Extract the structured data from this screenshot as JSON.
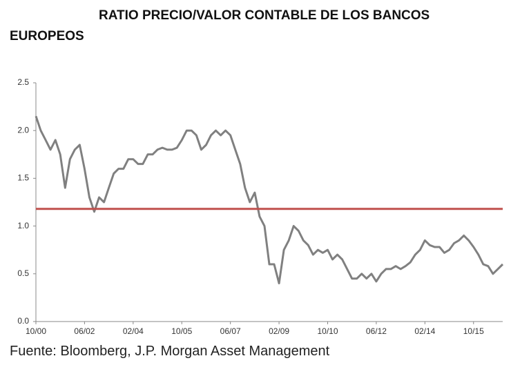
{
  "chart_data": {
    "type": "line",
    "title": "RATIO PRECIO/VALOR CONTABLE DE LOS BANCOS EUROPEOS",
    "source": "Fuente: Bloomberg, J.P. Morgan Asset Management",
    "x": [
      "10/00",
      "12/00",
      "02/01",
      "04/01",
      "06/01",
      "08/01",
      "10/01",
      "12/01",
      "02/02",
      "04/02",
      "06/02",
      "08/02",
      "10/02",
      "12/02",
      "02/03",
      "04/03",
      "06/03",
      "08/03",
      "10/03",
      "12/03",
      "02/04",
      "04/04",
      "06/04",
      "08/04",
      "10/04",
      "12/04",
      "02/05",
      "04/05",
      "06/05",
      "08/05",
      "10/05",
      "12/05",
      "02/06",
      "04/06",
      "06/06",
      "08/06",
      "10/06",
      "12/06",
      "02/07",
      "04/07",
      "06/07",
      "08/07",
      "10/07",
      "12/07",
      "02/08",
      "04/08",
      "06/08",
      "08/08",
      "10/08",
      "12/08",
      "02/09",
      "04/09",
      "06/09",
      "08/09",
      "10/09",
      "12/09",
      "02/10",
      "04/10",
      "06/10",
      "08/10",
      "10/10",
      "12/10",
      "02/11",
      "04/11",
      "06/11",
      "08/11",
      "10/11",
      "12/11",
      "02/12",
      "04/12",
      "06/12",
      "08/12",
      "10/12",
      "12/12",
      "02/13",
      "04/13",
      "06/13",
      "08/13",
      "10/13",
      "12/13",
      "02/14",
      "04/14",
      "06/14",
      "08/14",
      "10/14",
      "12/14",
      "02/15",
      "04/15",
      "06/15",
      "08/15",
      "10/15",
      "12/15",
      "02/16",
      "04/16",
      "06/16",
      "08/16",
      "10/16"
    ],
    "xticks": [
      "10/00",
      "06/02",
      "02/04",
      "10/05",
      "06/07",
      "02/09",
      "10/10",
      "06/12",
      "02/14",
      "10/15"
    ],
    "series": [
      {
        "color": "#808080",
        "values": [
          2.15,
          2.0,
          1.9,
          1.8,
          1.9,
          1.75,
          1.4,
          1.7,
          1.8,
          1.85,
          1.6,
          1.3,
          1.15,
          1.3,
          1.25,
          1.4,
          1.55,
          1.6,
          1.6,
          1.7,
          1.7,
          1.65,
          1.65,
          1.75,
          1.75,
          1.8,
          1.82,
          1.8,
          1.8,
          1.82,
          1.9,
          2.0,
          2.0,
          1.95,
          1.8,
          1.85,
          1.95,
          2.0,
          1.95,
          2.0,
          1.95,
          1.8,
          1.65,
          1.4,
          1.25,
          1.35,
          1.1,
          1.0,
          0.6,
          0.6,
          0.4,
          0.75,
          0.85,
          1.0,
          0.95,
          0.85,
          0.8,
          0.7,
          0.75,
          0.72,
          0.75,
          0.65,
          0.7,
          0.65,
          0.55,
          0.45,
          0.45,
          0.5,
          0.45,
          0.5,
          0.42,
          0.5,
          0.55,
          0.55,
          0.58,
          0.55,
          0.58,
          0.62,
          0.7,
          0.75,
          0.85,
          0.8,
          0.78,
          0.78,
          0.72,
          0.75,
          0.82,
          0.85,
          0.9,
          0.85,
          0.78,
          0.7,
          0.6,
          0.58,
          0.5,
          0.55,
          0.6
        ]
      }
    ],
    "reference_line": {
      "value": 1.18,
      "color": "#c0504d"
    },
    "ylim": [
      0,
      2.5
    ],
    "yticks": [
      {
        "value": 0,
        "label": "0.0"
      },
      0.5,
      {
        "value": 1,
        "label": "1.0"
      },
      1.5,
      {
        "value": 2,
        "label": "2.0"
      },
      2.5
    ],
    "grid": false
  }
}
